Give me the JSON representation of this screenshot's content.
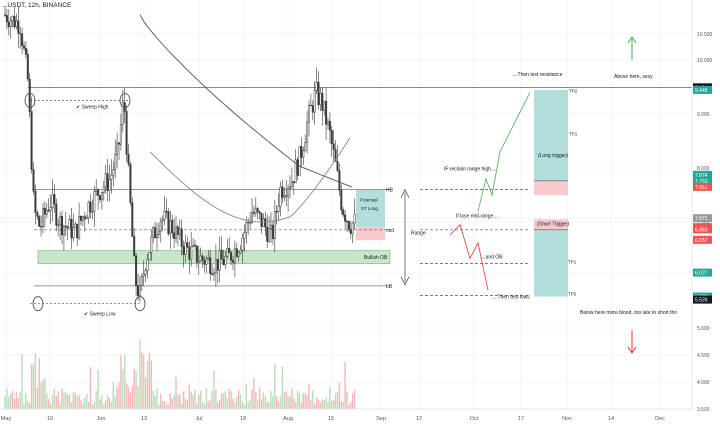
{
  "header": {
    "symbol": "...USDT, 12h, BINANCE"
  },
  "colors": {
    "candle": "#3a3a3a",
    "ma_long": "#555555",
    "ma_short": "#888888",
    "green_zone": "#c8e6c9",
    "green_zone_border": "#4caf50",
    "tp_green": "#b2dfdb",
    "sl_red": "#f8c8cc",
    "arrow_green": "#4caf50",
    "arrow_red": "#e53935",
    "volume": "#f4b7b7",
    "volume_green": "#b8ddb8"
  },
  "chart_data": {
    "type": "candlestick",
    "title": "",
    "symbol_text": "...USDT, 12h, BINANCE",
    "ylim": [
      3.5,
      11.2
    ],
    "y_ticks": [
      "10.500",
      "10.000",
      "9.000",
      "8.000",
      "7.000",
      "6.000",
      "5.000",
      "4.500",
      "4.000",
      "3.500"
    ],
    "y_tick_values": [
      10.5,
      10.0,
      9.0,
      8.0,
      7.0,
      6.0,
      5.0,
      4.5,
      4.0,
      3.5
    ],
    "x_ticks": [
      "May",
      "16",
      "Jun",
      "13",
      "Jul",
      "18",
      "Aug",
      "15",
      "Sep",
      "12",
      "Oct",
      "17",
      "Nov",
      "14",
      "Dec"
    ],
    "price_badges": [
      {
        "label": "9.494",
        "value": 9.494,
        "color": "#131722"
      },
      {
        "label": "9.446",
        "value": 9.446,
        "color": "#26a69a"
      },
      {
        "label": "7.874",
        "value": 7.874,
        "color": "#26a69a"
      },
      {
        "label": "7.763",
        "value": 7.763,
        "color": "#26a69a"
      },
      {
        "label": "7.651",
        "value": 7.651,
        "color": "#ef5350"
      },
      {
        "label": "7.071",
        "value": 7.071,
        "color": "#999999"
      },
      {
        "label": "6.901",
        "value": 6.901,
        "color": "#ef5350"
      },
      {
        "label": "6.860",
        "value": 6.86,
        "color": "#ef5350"
      },
      {
        "label": "6.657",
        "value": 6.657,
        "color": "#ef5350"
      },
      {
        "label": "6.027",
        "value": 6.027,
        "color": "#26a69a"
      },
      {
        "label": "5.582",
        "value": 5.582,
        "color": "#26a69a"
      },
      {
        "label": "5.526",
        "value": 5.526,
        "color": "#131722"
      }
    ],
    "levels": {
      "resistance": 9.494,
      "hb": 7.6,
      "mid": 6.85,
      "bullish_ob_top": 6.45,
      "bullish_ob_bottom": 6.2,
      "lb": 5.78,
      "sweep_high": 9.25,
      "sweep_low": 5.45
    },
    "annotations": {
      "sweep_high": "Sweep High",
      "sweep_low": "Sweep Low",
      "hb": "HB",
      "mid": "mid",
      "lb": "LB",
      "bullish_ob": "Bullish OB",
      "potential_st_long": "Potential ST Long",
      "range": "Range",
      "reclaim": "IF reclaim range high....",
      "test_resistance": "....Then test resistance",
      "lose_mid": "If lose mid-range....",
      "and_ob": "....and OB",
      "test_lows": "....Then test lows",
      "long_trigger": "(Long trigger)",
      "short_trigger": "(Short Trigger)",
      "tp2_long": "TP2",
      "tp1_long": "TP1",
      "tp1_short": "TP1",
      "tp2_short": "TP2",
      "above_here": "Above here, sexy",
      "below_here": "Below here more blood, too late to short tho"
    }
  }
}
